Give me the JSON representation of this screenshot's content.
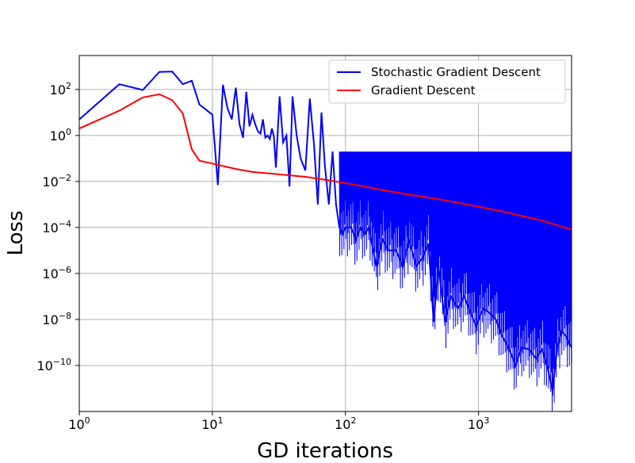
{
  "chart_data": {
    "type": "line",
    "title": "",
    "xlabel": "GD iterations",
    "ylabel": "Loss",
    "xscale": "log",
    "yscale": "log",
    "xlim": [
      1,
      5000
    ],
    "ylim": [
      1e-12,
      3000
    ],
    "grid": true,
    "legend": "top-right",
    "x_ticks": [
      1,
      10,
      100,
      1000
    ],
    "x_tick_labels": [
      {
        "base": "10",
        "exp": "0"
      },
      {
        "base": "10",
        "exp": "1"
      },
      {
        "base": "10",
        "exp": "2"
      },
      {
        "base": "10",
        "exp": "3"
      }
    ],
    "y_ticks": [
      1e-10,
      1e-08,
      1e-06,
      0.0001,
      0.01,
      1,
      100
    ],
    "y_tick_labels": [
      {
        "base": "10",
        "exp": "−10"
      },
      {
        "base": "10",
        "exp": "−8"
      },
      {
        "base": "10",
        "exp": "−6"
      },
      {
        "base": "10",
        "exp": "−4"
      },
      {
        "base": "10",
        "exp": "−2"
      },
      {
        "base": "10",
        "exp": "0"
      },
      {
        "base": "10",
        "exp": "2"
      }
    ],
    "series": [
      {
        "name": "Stochastic Gradient Descent",
        "color": "#0000ff",
        "x": [
          1,
          2,
          3,
          4,
          5,
          6,
          7,
          8,
          10,
          11,
          12,
          13,
          14,
          15,
          16,
          17,
          18,
          19,
          20,
          21,
          22,
          23,
          24,
          25,
          26,
          27,
          28,
          29,
          30,
          32,
          34,
          36,
          38,
          40,
          43,
          46,
          50,
          54,
          58,
          62,
          66,
          70,
          75,
          80,
          85,
          90,
          95,
          100,
          110,
          120,
          130,
          140,
          150,
          170,
          190,
          210,
          240,
          270,
          300,
          340,
          380,
          420,
          460,
          500,
          560,
          620,
          700,
          780,
          870,
          960,
          1080,
          1200,
          1350,
          1500,
          1700,
          1900,
          2100,
          2400,
          2700,
          3000,
          3300,
          3600,
          3900,
          4200,
          4500,
          5000
        ],
        "y": [
          5,
          170,
          95,
          580,
          600,
          170,
          240,
          22,
          8,
          0.007,
          160,
          15,
          5,
          120,
          3,
          0.8,
          80,
          2.5,
          8,
          3,
          1.5,
          1.2,
          5,
          0.8,
          1,
          0.7,
          2,
          0.9,
          0.04,
          50,
          0.5,
          1,
          0.006,
          50,
          1,
          0.1,
          0.03,
          40,
          0.4,
          0.001,
          10,
          0.05,
          0.001,
          0.2,
          0.001,
          0.0001,
          5e-05,
          0.0001,
          0.0001,
          3e-05,
          0.0001,
          5e-05,
          0.0001,
          2e-06,
          3e-05,
          1e-05,
          1e-05,
          2e-06,
          3e-05,
          2e-06,
          5e-06,
          2e-05,
          8e-09,
          2e-06,
          8e-09,
          1e-07,
          3e-08,
          1e-07,
          2e-08,
          5e-09,
          3e-08,
          2e-08,
          1e-08,
          2e-09,
          5e-10,
          1e-10,
          6e-10,
          5e-10,
          2e-10,
          5e-10,
          8e-11,
          8e-12,
          6e-10,
          3e-09,
          2e-09,
          6e-10
        ],
        "oscillation_upper": 0.2
      },
      {
        "name": "Gradient Descent",
        "color": "#ff0000",
        "x": [
          1,
          2,
          3,
          4,
          5,
          6,
          7,
          8,
          10,
          15,
          20,
          30,
          50,
          70,
          100,
          150,
          200,
          300,
          500,
          700,
          1000,
          1500,
          2000,
          3000,
          5000
        ],
        "y": [
          2,
          12,
          45,
          62,
          34,
          9,
          0.25,
          0.08,
          0.06,
          0.035,
          0.026,
          0.021,
          0.016,
          0.012,
          0.0085,
          0.0055,
          0.004,
          0.0027,
          0.0017,
          0.0012,
          0.0008,
          0.0005,
          0.00034,
          0.0002,
          8e-05
        ]
      }
    ]
  }
}
